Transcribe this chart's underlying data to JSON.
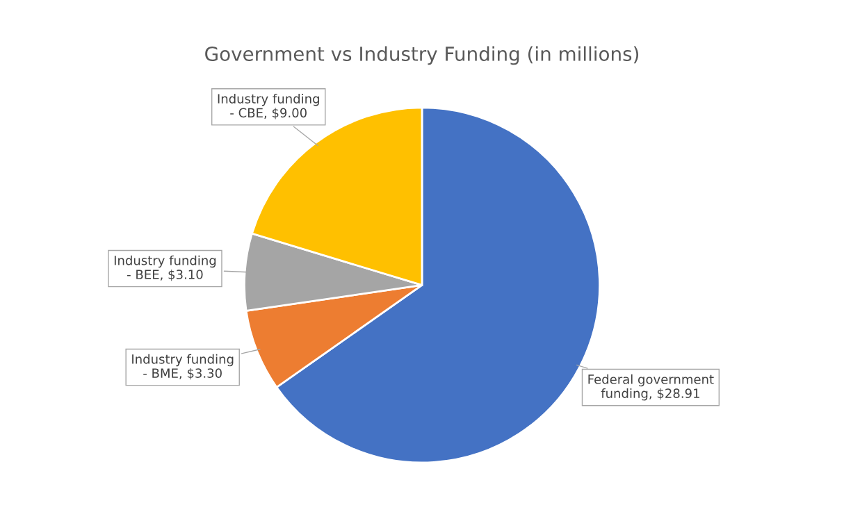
{
  "chart_data": {
    "type": "pie",
    "title": "Government vs Industry Funding (in millions)",
    "categories": [
      "Federal government funding",
      "Industry funding - BME",
      "Industry funding - BEE",
      "Industry funding - CBE"
    ],
    "values": [
      28.91,
      3.3,
      3.1,
      9.0
    ],
    "value_labels": [
      "$28.91",
      "$3.30",
      "$3.10",
      "$9.00"
    ],
    "colors": [
      "#4472c4",
      "#ed7d31",
      "#a5a5a5",
      "#ffc000"
    ],
    "legend": false
  }
}
